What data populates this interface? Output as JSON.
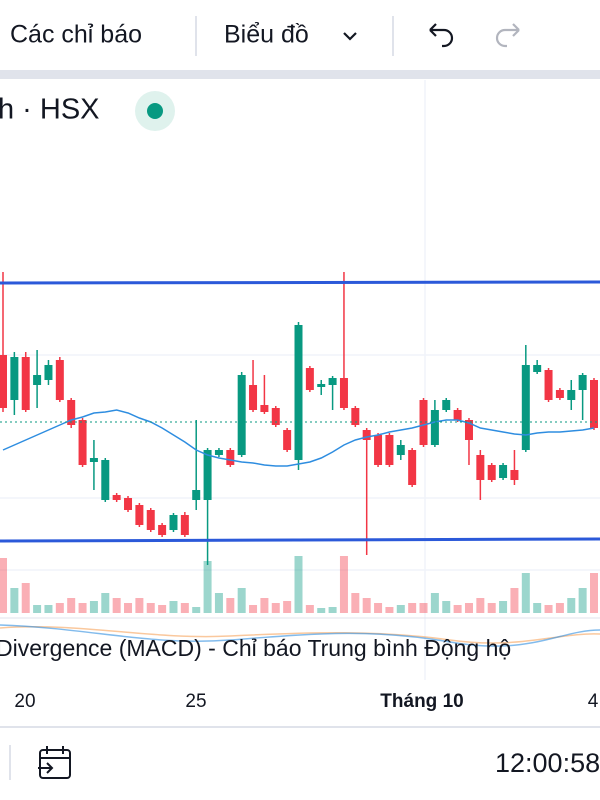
{
  "toolbar": {
    "indicators": "Các chỉ báo",
    "chart": "Biểu đồ"
  },
  "symbol": "h · HSX",
  "chart_data": {
    "type": "candlestick",
    "open": [
      245,
      200,
      243,
      215,
      220,
      240,
      200,
      180,
      138,
      100,
      105,
      102,
      95,
      90,
      75,
      70,
      85,
      100,
      100,
      145,
      150,
      145,
      215,
      195,
      192,
      170,
      140,
      232,
      213,
      215,
      222,
      192,
      170,
      165,
      165,
      145,
      150,
      200,
      155,
      190,
      190,
      180,
      145,
      135,
      122,
      130,
      150,
      228,
      230,
      210,
      200,
      210,
      220
    ],
    "high": [
      328,
      248,
      248,
      250,
      240,
      243,
      202,
      182,
      160,
      142,
      107,
      104,
      97,
      92,
      77,
      87,
      88,
      180,
      152,
      152,
      152,
      228,
      240,
      225,
      194,
      172,
      278,
      234,
      220,
      224,
      328,
      194,
      172,
      167,
      167,
      160,
      152,
      202,
      200,
      202,
      192,
      182,
      150,
      137,
      137,
      150,
      255,
      240,
      232,
      212,
      220,
      227,
      222
    ],
    "low": [
      188,
      185,
      188,
      192,
      215,
      198,
      172,
      133,
      110,
      98,
      98,
      88,
      73,
      68,
      63,
      68,
      63,
      90,
      35,
      143,
      133,
      143,
      188,
      186,
      173,
      148,
      130,
      208,
      205,
      190,
      190,
      173,
      45,
      133,
      133,
      140,
      113,
      153,
      153,
      188,
      178,
      135,
      100,
      118,
      120,
      115,
      148,
      226,
      198,
      200,
      190,
      180,
      170
    ],
    "close": [
      192,
      243,
      190,
      225,
      235,
      200,
      175,
      135,
      142,
      140,
      100,
      90,
      75,
      70,
      65,
      85,
      65,
      110,
      150,
      150,
      135,
      225,
      190,
      188,
      175,
      150,
      275,
      210,
      216,
      222,
      192,
      175,
      160,
      135,
      135,
      155,
      115,
      155,
      190,
      200,
      180,
      160,
      120,
      120,
      135,
      120,
      235,
      235,
      200,
      202,
      210,
      225,
      172
    ],
    "volume": [
      55,
      25,
      30,
      8,
      8,
      10,
      15,
      10,
      12,
      20,
      15,
      10,
      15,
      10,
      8,
      12,
      10,
      6,
      52,
      20,
      15,
      25,
      8,
      15,
      10,
      12,
      57,
      8,
      5,
      6,
      57,
      20,
      15,
      10,
      6,
      8,
      10,
      10,
      20,
      12,
      8,
      10,
      15,
      10,
      12,
      25,
      40,
      10,
      8,
      10,
      15,
      25,
      40
    ],
    "ma": [
      150,
      155,
      160,
      165,
      170,
      175,
      180,
      183,
      187,
      188,
      190,
      187,
      182,
      178,
      172,
      165,
      158,
      150,
      145,
      142,
      140,
      138,
      137,
      135,
      134,
      134,
      136,
      138,
      142,
      148,
      155,
      160,
      163,
      165,
      168,
      170,
      172,
      175,
      178,
      180,
      180,
      177,
      172,
      170,
      168,
      166,
      165,
      167,
      168,
      168,
      169,
      170,
      172
    ],
    "up_color": "#089981",
    "down_color": "#f23645",
    "ma_color": "#2e8de0"
  },
  "indicator_label": "Divergence (MACD) - Chỉ báo Trung bình Động hộ",
  "x_labels": [
    "20",
    "25",
    "Tháng 10",
    "4"
  ],
  "clock": "12:00:58"
}
